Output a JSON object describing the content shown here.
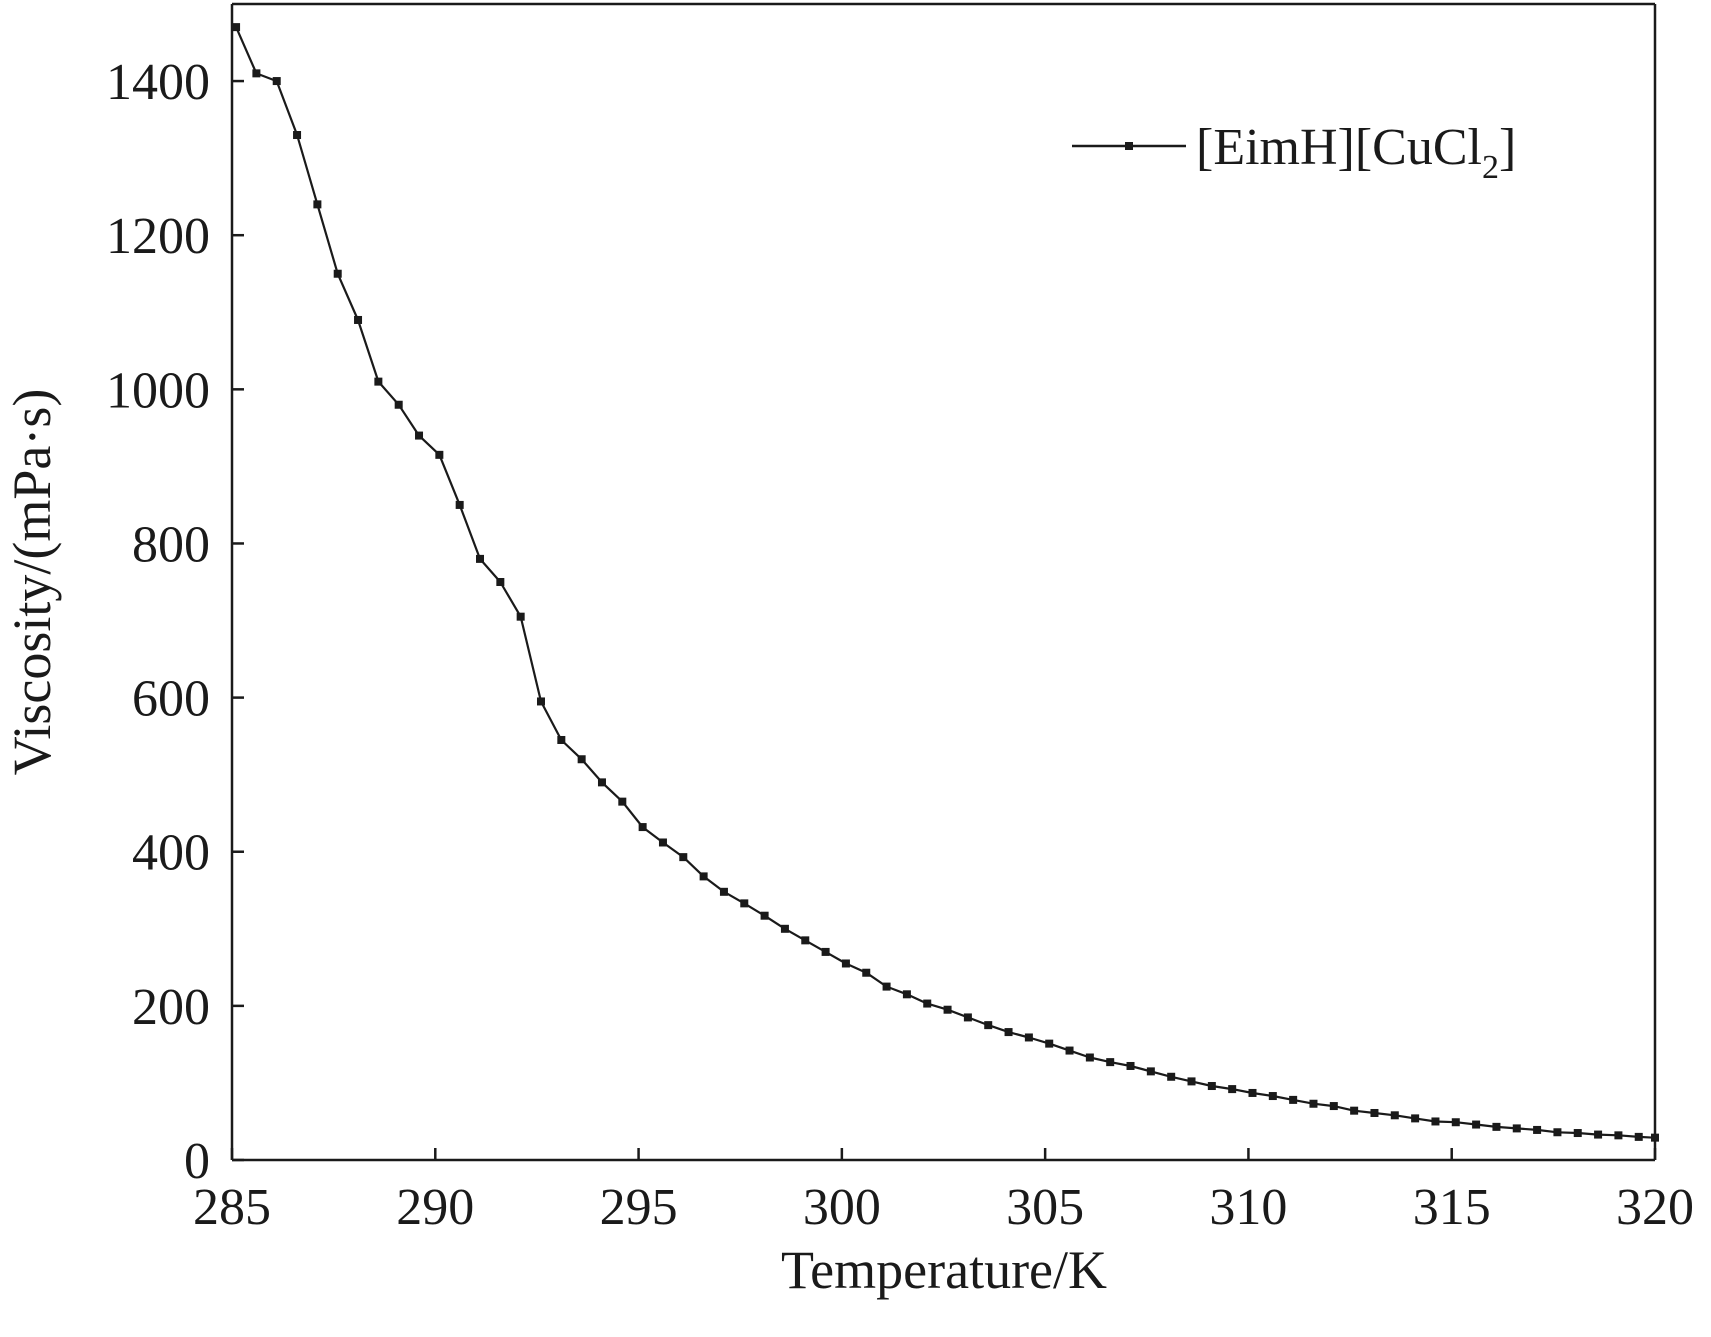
{
  "chart_data": {
    "type": "line",
    "title": "",
    "xlabel": "Temperature/K",
    "ylabel": "Viscosity/(mPa·s)",
    "xlim": [
      285,
      320
    ],
    "ylim": [
      0,
      1500
    ],
    "xticks": [
      285,
      290,
      295,
      300,
      305,
      310,
      315,
      320
    ],
    "yticks": [
      0,
      200,
      400,
      600,
      800,
      1000,
      1200,
      1400
    ],
    "grid": false,
    "legend_position": "top-right",
    "series": [
      {
        "name": "[EimH][CuCl2]",
        "name_main": "[EimH][CuCl",
        "name_sub": "2",
        "name_close": "]",
        "color": "#1a1a1a",
        "marker": "square",
        "x": [
          285.1,
          285.6,
          286.1,
          286.6,
          287.1,
          287.6,
          288.1,
          288.6,
          289.1,
          289.6,
          290.1,
          290.6,
          291.1,
          291.6,
          292.1,
          292.6,
          293.1,
          293.6,
          294.1,
          294.6,
          295.1,
          295.6,
          296.1,
          296.6,
          297.1,
          297.6,
          298.1,
          298.6,
          299.1,
          299.6,
          300.1,
          300.6,
          301.1,
          301.6,
          302.1,
          302.6,
          303.1,
          303.6,
          304.1,
          304.6,
          305.1,
          305.6,
          306.1,
          306.6,
          307.1,
          307.6,
          308.1,
          308.6,
          309.1,
          309.6,
          310.1,
          310.6,
          311.1,
          311.6,
          312.1,
          312.6,
          313.1,
          313.6,
          314.1,
          314.6,
          315.1,
          315.6,
          316.1,
          316.6,
          317.1,
          317.6,
          318.1,
          318.6,
          319.1,
          319.6,
          320.0
        ],
        "y": [
          1470,
          1410,
          1400,
          1330,
          1240,
          1150,
          1090,
          1010,
          980,
          940,
          915,
          850,
          780,
          750,
          705,
          595,
          545,
          520,
          490,
          465,
          432,
          412,
          393,
          368,
          348,
          333,
          317,
          300,
          285,
          270,
          255,
          243,
          225,
          215,
          203,
          195,
          185,
          175,
          166,
          159,
          151,
          142,
          133,
          127,
          122,
          115,
          108,
          102,
          96,
          92,
          87,
          83,
          78,
          73,
          70,
          64,
          61,
          58,
          54,
          50,
          49,
          46,
          43,
          41,
          39,
          36,
          35,
          33,
          32,
          30,
          29
        ]
      }
    ]
  }
}
